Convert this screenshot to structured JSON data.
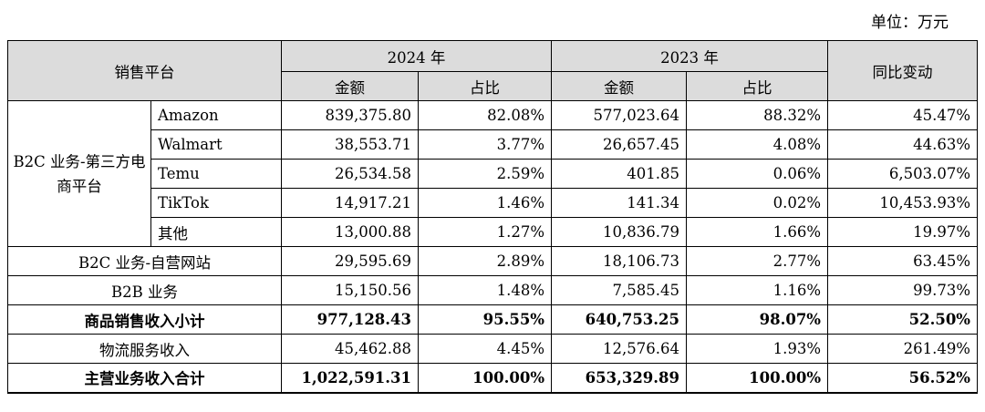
{
  "unit_label": "单位：万元",
  "header": {
    "platform": "销售平台",
    "year_2024": "2024 年",
    "year_2023": "2023 年",
    "amount": "金额",
    "share": "占比",
    "yoy": "同比变动"
  },
  "groups": {
    "b2c_third_party": "B2C 业务-第三方电商平台"
  },
  "rows": [
    {
      "label": "Amazon",
      "amt2024": "839,375.80",
      "pct2024": "82.08%",
      "amt2023": "577,023.64",
      "pct2023": "88.32%",
      "yoy": "45.47%"
    },
    {
      "label": "Walmart",
      "amt2024": "38,553.71",
      "pct2024": "3.77%",
      "amt2023": "26,657.45",
      "pct2023": "4.08%",
      "yoy": "44.63%"
    },
    {
      "label": "Temu",
      "amt2024": "26,534.58",
      "pct2024": "2.59%",
      "amt2023": "401.85",
      "pct2023": "0.06%",
      "yoy": "6,503.07%"
    },
    {
      "label": "TikTok",
      "amt2024": "14,917.21",
      "pct2024": "1.46%",
      "amt2023": "141.34",
      "pct2023": "0.02%",
      "yoy": "10,453.93%"
    },
    {
      "label": "其他",
      "amt2024": "13,000.88",
      "pct2024": "1.27%",
      "amt2023": "10,836.79",
      "pct2023": "1.66%",
      "yoy": "19.97%"
    },
    {
      "label": "B2C 业务-自营网站",
      "amt2024": "29,595.69",
      "pct2024": "2.89%",
      "amt2023": "18,106.73",
      "pct2023": "2.77%",
      "yoy": "63.45%"
    },
    {
      "label": "B2B 业务",
      "amt2024": "15,150.56",
      "pct2024": "1.48%",
      "amt2023": "7,585.45",
      "pct2023": "1.16%",
      "yoy": "99.73%"
    },
    {
      "label": "商品销售收入小计",
      "amt2024": "977,128.43",
      "pct2024": "95.55%",
      "amt2023": "640,753.25",
      "pct2023": "98.07%",
      "yoy": "52.50%"
    },
    {
      "label": "物流服务收入",
      "amt2024": "45,462.88",
      "pct2024": "4.45%",
      "amt2023": "12,576.64",
      "pct2023": "1.93%",
      "yoy": "261.49%"
    },
    {
      "label": "主营业务收入合计",
      "amt2024": "1,022,591.31",
      "pct2024": "100.00%",
      "amt2023": "653,329.89",
      "pct2023": "100.00%",
      "yoy": "56.52%"
    }
  ]
}
